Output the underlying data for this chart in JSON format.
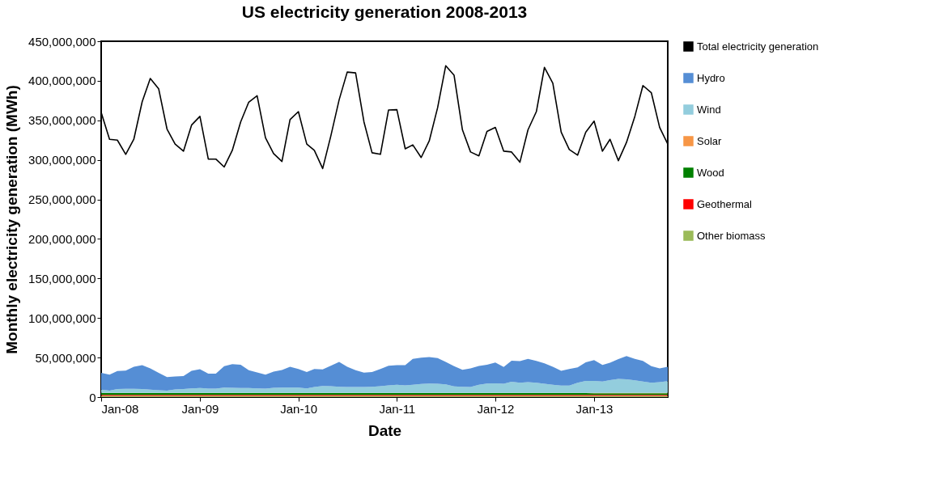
{
  "chart_data": {
    "type": "area",
    "title": "US electricity generation 2008-2013",
    "xlabel": "Date",
    "ylabel": "Monthly electricity generation (MWh)",
    "stacked": true,
    "legend": "right",
    "grid": false,
    "x": [
      "2008-01",
      "2008-02",
      "2008-03",
      "2008-04",
      "2008-05",
      "2008-06",
      "2008-07",
      "2008-08",
      "2008-09",
      "2008-10",
      "2008-11",
      "2008-12",
      "2009-01",
      "2009-02",
      "2009-03",
      "2009-04",
      "2009-05",
      "2009-06",
      "2009-07",
      "2009-08",
      "2009-09",
      "2009-10",
      "2009-11",
      "2009-12",
      "2010-01",
      "2010-02",
      "2010-03",
      "2010-04",
      "2010-05",
      "2010-06",
      "2010-07",
      "2010-08",
      "2010-09",
      "2010-10",
      "2010-11",
      "2010-12",
      "2011-01",
      "2011-02",
      "2011-03",
      "2011-04",
      "2011-05",
      "2011-06",
      "2011-07",
      "2011-08",
      "2011-09",
      "2011-10",
      "2011-11",
      "2011-12",
      "2012-01",
      "2012-02",
      "2012-03",
      "2012-04",
      "2012-05",
      "2012-06",
      "2012-07",
      "2012-08",
      "2012-09",
      "2012-10",
      "2012-11",
      "2012-12",
      "2013-01",
      "2013-02",
      "2013-03",
      "2013-04",
      "2013-05",
      "2013-06",
      "2013-07",
      "2013-08",
      "2013-09",
      "2013-10"
    ],
    "xlim": [
      "2008-01",
      "2013-10"
    ],
    "xticks": [
      {
        "value": "2009-01",
        "label": "Jan-09"
      },
      {
        "value": "2010-01",
        "label": "Jan-10"
      },
      {
        "value": "2011-01",
        "label": "Jan-11"
      },
      {
        "value": "2012-01",
        "label": "Jan-12"
      },
      {
        "value": "2013-01",
        "label": "Jan-13"
      },
      {
        "value": "2008-01",
        "label": "Jan-08"
      }
    ],
    "ylim": [
      0,
      450000000
    ],
    "yticks": [
      0,
      {
        "value": 50000000,
        "label": "50,000,000"
      },
      {
        "value": 100000000,
        "label": "100,000,000"
      },
      {
        "value": 150000000,
        "label": "150,000,000"
      },
      {
        "value": 200000000,
        "label": "200,000,000"
      },
      {
        "value": 250000000,
        "label": "250,000,000"
      },
      {
        "value": 300000000,
        "label": "300,000,000"
      },
      {
        "value": 350000000,
        "label": "350,000,000"
      },
      {
        "value": 400000000,
        "label": "400,000,000"
      },
      {
        "value": 450000000,
        "label": "450,000,000"
      }
    ],
    "series": [
      {
        "name": "Other biomass",
        "color": "#9bbb59",
        "values": [
          1500000.0,
          1500000.0,
          1500000.0,
          1500000.0,
          1500000.0,
          1500000.0,
          1500000.0,
          1500000.0,
          1500000.0,
          1500000.0,
          1500000.0,
          1500000.0,
          1500000.0,
          1500000.0,
          1500000.0,
          1500000.0,
          1500000.0,
          1500000.0,
          1500000.0,
          1500000.0,
          1500000.0,
          1500000.0,
          1500000.0,
          1500000.0,
          1500000.0,
          1500000.0,
          1500000.0,
          1500000.0,
          1500000.0,
          1500000.0,
          1500000.0,
          1500000.0,
          1500000.0,
          1500000.0,
          1500000.0,
          1500000.0,
          1500000.0,
          1500000.0,
          1500000.0,
          1500000.0,
          1500000.0,
          1500000.0,
          1500000.0,
          1500000.0,
          1500000.0,
          1500000.0,
          1500000.0,
          1500000.0,
          1500000.0,
          1500000.0,
          1500000.0,
          1500000.0,
          1500000.0,
          1500000.0,
          1500000.0,
          1500000.0,
          1500000.0,
          1500000.0,
          1500000.0,
          1500000.0,
          1500000.0,
          1500000.0,
          1500000.0,
          1500000.0,
          1500000.0,
          1500000.0,
          1500000.0,
          1500000.0,
          1500000.0,
          1500000.0
        ]
      },
      {
        "name": "Geothermal",
        "color": "#ff0000",
        "values": [
          1300000.0,
          1300000.0,
          1300000.0,
          1300000.0,
          1300000.0,
          1300000.0,
          1300000.0,
          1300000.0,
          1300000.0,
          1300000.0,
          1300000.0,
          1300000.0,
          1300000.0,
          1300000.0,
          1300000.0,
          1300000.0,
          1300000.0,
          1300000.0,
          1300000.0,
          1300000.0,
          1300000.0,
          1300000.0,
          1300000.0,
          1300000.0,
          1300000.0,
          1300000.0,
          1300000.0,
          1300000.0,
          1300000.0,
          1300000.0,
          1300000.0,
          1300000.0,
          1300000.0,
          1300000.0,
          1300000.0,
          1300000.0,
          1300000.0,
          1300000.0,
          1300000.0,
          1300000.0,
          1300000.0,
          1300000.0,
          1300000.0,
          1300000.0,
          1300000.0,
          1300000.0,
          1300000.0,
          1300000.0,
          1300000.0,
          1300000.0,
          1300000.0,
          1300000.0,
          1300000.0,
          1300000.0,
          1300000.0,
          1300000.0,
          1300000.0,
          1300000.0,
          1300000.0,
          1300000.0,
          1300000.0,
          1300000.0,
          1300000.0,
          1300000.0,
          1300000.0,
          1300000.0,
          1300000.0,
          1300000.0,
          1300000.0,
          1300000.0
        ]
      },
      {
        "name": "Wood",
        "color": "#008000",
        "values": [
          2400000.0,
          2400000.0,
          2400000.0,
          2400000.0,
          2400000.0,
          2400000.0,
          2400000.0,
          2400000.0,
          2400000.0,
          2400000.0,
          2400000.0,
          2400000.0,
          2400000.0,
          2400000.0,
          2400000.0,
          2400000.0,
          2400000.0,
          2400000.0,
          2400000.0,
          2400000.0,
          2400000.0,
          2400000.0,
          2400000.0,
          2400000.0,
          2400000.0,
          2400000.0,
          2400000.0,
          2400000.0,
          2400000.0,
          2400000.0,
          2400000.0,
          2400000.0,
          2400000.0,
          2400000.0,
          2400000.0,
          2400000.0,
          2300000.0,
          2300000.0,
          2300000.0,
          2300000.0,
          2300000.0,
          2300000.0,
          2300000.0,
          2300000.0,
          2300000.0,
          2300000.0,
          2300000.0,
          2300000.0,
          2200000.0,
          2200000.0,
          2200000.0,
          2200000.0,
          2200000.0,
          2200000.0,
          2200000.0,
          2200000.0,
          2200000.0,
          2200000.0,
          2200000.0,
          2200000.0,
          2000000.0,
          2000000.0,
          2000000.0,
          2000000.0,
          2000000.0,
          2000000.0,
          2000000.0,
          2000000.0,
          2000000.0,
          2000000.0
        ]
      },
      {
        "name": "Solar",
        "color": "#f79646",
        "values": [
          100000.0,
          100000.0,
          100000.0,
          100000.0,
          100000.0,
          100000.0,
          100000.0,
          100000.0,
          100000.0,
          100000.0,
          100000.0,
          100000.0,
          100000.0,
          100000.0,
          100000.0,
          100000.0,
          100000.0,
          100000.0,
          100000.0,
          100000.0,
          100000.0,
          100000.0,
          100000.0,
          100000.0,
          100000.0,
          100000.0,
          100000.0,
          100000.0,
          100000.0,
          100000.0,
          100000.0,
          100000.0,
          100000.0,
          100000.0,
          100000.0,
          100000.0,
          200000.0,
          200000.0,
          200000.0,
          200000.0,
          200000.0,
          200000.0,
          200000.0,
          200000.0,
          200000.0,
          200000.0,
          200000.0,
          200000.0,
          300000.0,
          300000.0,
          300000.0,
          300000.0,
          300000.0,
          300000.0,
          300000.0,
          300000.0,
          300000.0,
          300000.0,
          300000.0,
          300000.0,
          500000.0,
          500000.0,
          500000.0,
          500000.0,
          500000.0,
          500000.0,
          500000.0,
          500000.0,
          500000.0,
          500000.0
        ]
      },
      {
        "name": "Wind",
        "color": "#93cddd",
        "values": [
          4100000.0,
          2800000.0,
          4800000.0,
          5100000.0,
          5100000.0,
          4800000.0,
          4100000.0,
          3400000.0,
          2800000.0,
          4500000.0,
          4800000.0,
          5800000.0,
          6100000.0,
          5500000.0,
          5500000.0,
          6800000.0,
          6500000.0,
          6100000.0,
          6100000.0,
          5800000.0,
          5500000.0,
          6500000.0,
          6800000.0,
          6800000.0,
          6800000.0,
          5800000.0,
          7500000.0,
          8800000.0,
          8500000.0,
          7800000.0,
          7500000.0,
          7500000.0,
          7500000.0,
          7800000.0,
          8500000.0,
          9500000.0,
          10200000.0,
          9500000.0,
          10200000.0,
          11200000.0,
          11900000.0,
          11500000.0,
          10800000.0,
          8200000.0,
          7800000.0,
          7500000.0,
          10200000.0,
          11900000.0,
          12200000.0,
          11500000.0,
          14200000.0,
          12900000.0,
          13500000.0,
          12900000.0,
          11500000.0,
          10200000.0,
          9200000.0,
          9200000.0,
          12900000.0,
          15200000.0,
          15200000.0,
          14500000.0,
          16200000.0,
          17600000.0,
          17200000.0,
          15900000.0,
          14500000.0,
          12900000.0,
          13500000.0,
          14900000.0
        ]
      },
      {
        "name": "Hydro",
        "color": "#558ed5",
        "values": [
          21200000.0,
          20200000.0,
          22900000.0,
          23200000.0,
          27900000.0,
          30300000.0,
          26900000.0,
          21900000.0,
          17100000.0,
          16400000.0,
          16400000.0,
          22200000.0,
          23900000.0,
          18800000.0,
          18800000.0,
          26900000.0,
          29900000.0,
          29600000.0,
          22600000.0,
          20200000.0,
          17500000.0,
          20500000.0,
          22200000.0,
          26200000.0,
          23500000.0,
          20500000.0,
          22800000.0,
          20900000.0,
          25900000.0,
          31300000.0,
          25500000.0,
          21200000.0,
          18200000.0,
          18500000.0,
          21800000.0,
          24900000.0,
          24900000.0,
          25600000.0,
          32900000.0,
          33300000.0,
          33300000.0,
          32600000.0,
          28300000.0,
          25500000.0,
          21500000.0,
          23500000.0,
          23800000.0,
          23800000.0,
          26200000.0,
          21200000.0,
          26600000.0,
          27200000.0,
          29600000.0,
          27500000.0,
          25900000.0,
          22800000.0,
          18800000.0,
          21100000.0,
          19500000.0,
          23600000.0,
          26200000.0,
          20900000.0,
          21900000.0,
          25200000.0,
          29300000.0,
          27200000.0,
          25900000.0,
          20800000.0,
          17500000.0,
          18100000.0
        ]
      },
      {
        "name": "Total electricity generation",
        "type": "line",
        "color": "#000000",
        "values": [
          360000000.0,
          326000000.0,
          325000000.0,
          307000000.0,
          326000000.0,
          373600000.0,
          403000000.0,
          390000000.0,
          339000000.0,
          320000000.0,
          311000000.0,
          344000000.0,
          355000000.0,
          301000000.0,
          301000000.0,
          291000000.0,
          312000000.0,
          348000000.0,
          373000000.0,
          381000000.0,
          328000000.0,
          308000000.0,
          298000000.0,
          351000000.0,
          361000000.0,
          320000000.0,
          312000000.0,
          289000000.0,
          330000000.0,
          376000000.0,
          411000000.0,
          410000000.0,
          348000000.0,
          309000000.0,
          307000000.0,
          363000000.0,
          363500000.0,
          314000000.0,
          319000000.0,
          303000000.0,
          324000000.0,
          366000000.0,
          419000000.0,
          407000000.0,
          338000000.0,
          310000000.0,
          305000000.0,
          336000000.0,
          341000000.0,
          311000000.0,
          310000000.0,
          297000000.0,
          338000000.0,
          361000000.0,
          417000000.0,
          397000000.0,
          335000000.0,
          313000000.0,
          306000000.0,
          335000000.0,
          349000000.0,
          311000000.0,
          326000000.0,
          299000000.0,
          322000000.0,
          355000000.0,
          394000000.0,
          385000000.0,
          341000000.0,
          320000000.0
        ]
      }
    ]
  }
}
